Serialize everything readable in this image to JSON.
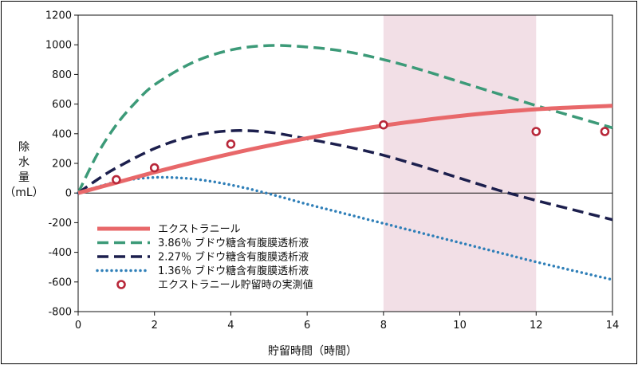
{
  "chart_data": {
    "type": "line",
    "xlabel": "貯留時間（時間）",
    "ylabel_lines": [
      "除",
      "水",
      "量",
      "（mL）"
    ],
    "xlim": [
      0,
      14
    ],
    "ylim": [
      -800,
      1200
    ],
    "x_ticks": [
      0,
      2,
      4,
      6,
      8,
      10,
      12,
      14
    ],
    "y_ticks": [
      1200,
      1000,
      800,
      600,
      400,
      200,
      0,
      -200,
      -400,
      -600,
      -800
    ],
    "grid": false,
    "shaded_region": {
      "x": [
        8,
        12
      ],
      "color": "#f2dfe6"
    },
    "legend_position": "lower-left",
    "series": [
      {
        "name": "エクストラニール",
        "style": "solid",
        "color": "#e8686a",
        "x": [
          0,
          1,
          2,
          3,
          4,
          5,
          6,
          7,
          8,
          9,
          10,
          11,
          12,
          13,
          14
        ],
        "y": [
          0,
          70,
          140,
          205,
          265,
          320,
          370,
          415,
          455,
          490,
          520,
          545,
          565,
          578,
          588
        ]
      },
      {
        "name": "3.86％ ブドウ糖含有腹膜透析液",
        "style": "dashed",
        "color": "#3c9a78",
        "x": [
          0,
          0.5,
          1,
          1.5,
          2,
          3,
          4,
          5,
          6,
          7,
          8,
          9,
          10,
          11,
          12,
          13,
          14
        ],
        "y": [
          0,
          260,
          460,
          610,
          730,
          880,
          965,
          995,
          985,
          955,
          900,
          830,
          750,
          670,
          590,
          515,
          440
        ]
      },
      {
        "name": "2.27％ ブドウ糖含有腹膜透析液",
        "style": "dashed",
        "color": "#1c1f4d",
        "x": [
          0,
          0.5,
          1,
          2,
          3,
          4,
          5,
          6,
          7,
          8,
          9,
          10,
          11,
          12,
          13,
          14
        ],
        "y": [
          0,
          90,
          170,
          300,
          385,
          420,
          410,
          365,
          315,
          255,
          180,
          100,
          20,
          -50,
          -115,
          -180
        ]
      },
      {
        "name": "1.36％ ブドウ糖含有腹膜透析液",
        "style": "dotted",
        "color": "#2f7fb8",
        "x": [
          0,
          1,
          2,
          3,
          4,
          5,
          6,
          7,
          8,
          9,
          10,
          11,
          12,
          13,
          14
        ],
        "y": [
          0,
          75,
          105,
          95,
          55,
          -5,
          -75,
          -140,
          -205,
          -270,
          -335,
          -400,
          -465,
          -525,
          -585
        ]
      },
      {
        "name": "エクストラニール貯留時の実測値",
        "style": "markers",
        "color": "#b8283a",
        "x": [
          1,
          2,
          4,
          8,
          12,
          13.8
        ],
        "y": [
          90,
          170,
          330,
          460,
          415,
          415
        ]
      }
    ]
  }
}
